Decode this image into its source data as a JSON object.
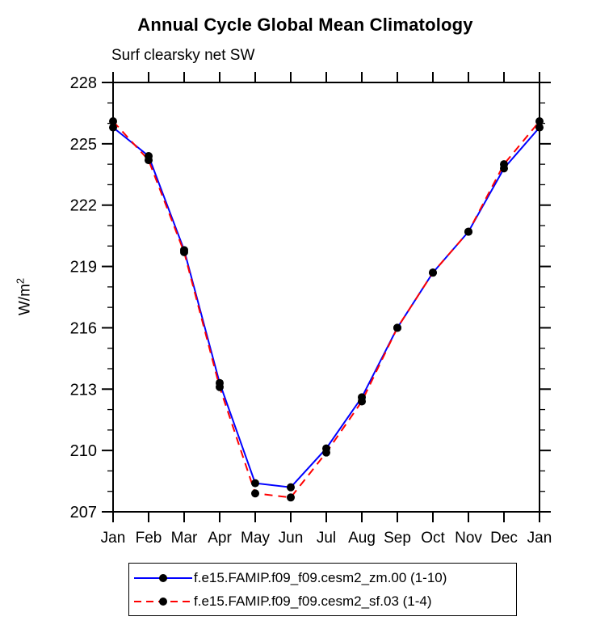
{
  "page": {
    "title": "Annual Cycle Global Mean Climatology",
    "subtitle": "Surf clearsky net SW"
  },
  "labels": {
    "ylabel_base": "W/m",
    "ylabel_exp": "2"
  },
  "colors": {
    "series1": "#0000ff",
    "series2": "#ff0000",
    "marker": "#000000",
    "axis": "#000000",
    "background": "#ffffff"
  },
  "chart_data": {
    "type": "line",
    "title": "Annual Cycle Global Mean Climatology",
    "subtitle": "Surf clearsky net SW",
    "xlabel": "",
    "ylabel": "W/m²",
    "x_categories": [
      "Jan",
      "Feb",
      "Mar",
      "Apr",
      "May",
      "Jun",
      "Jul",
      "Aug",
      "Sep",
      "Oct",
      "Nov",
      "Dec",
      "Jan"
    ],
    "ylim": [
      207,
      228
    ],
    "y_major_tick_step": 3,
    "y_minor_tick_step": 1,
    "y_major_ticks": [
      207,
      210,
      213,
      216,
      219,
      222,
      225,
      228
    ],
    "grid": false,
    "legend_position": "bottom",
    "series": [
      {
        "name": "f.e15.FAMIP.f09_f09.cesm2_zm.00 (1-10)",
        "color": "#0000ff",
        "line_style": "solid",
        "marker": "circle",
        "marker_color": "#000000",
        "values": [
          225.8,
          224.4,
          219.8,
          213.3,
          208.4,
          208.2,
          210.1,
          212.6,
          216.0,
          218.7,
          220.7,
          223.8,
          225.8
        ]
      },
      {
        "name": "f.e15.FAMIP.f09_f09.cesm2_sf.03 (1-4)",
        "color": "#ff0000",
        "line_style": "dashed",
        "marker": "circle",
        "marker_color": "#000000",
        "values": [
          226.1,
          224.2,
          219.7,
          213.1,
          207.9,
          207.7,
          209.9,
          212.4,
          216.0,
          218.7,
          220.7,
          224.0,
          226.1
        ]
      }
    ]
  }
}
